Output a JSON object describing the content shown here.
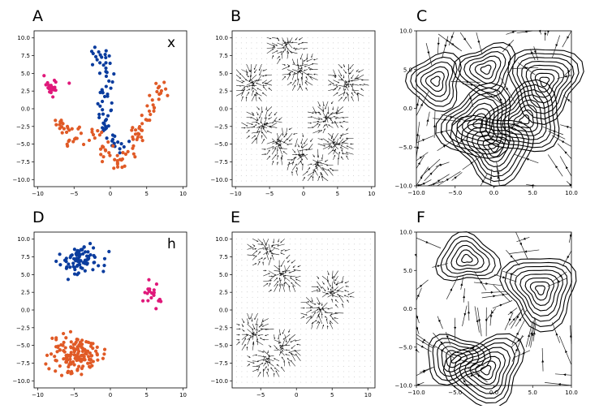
{
  "chart_data": [
    {
      "panel": "A",
      "type": "scatter",
      "annotation": "x",
      "xticks": [
        "−10",
        "−5",
        "0",
        "5",
        "10"
      ],
      "yticks": [
        "10.0",
        "7.5",
        "5.0",
        "2.5",
        "0.0",
        "−2.5",
        "−5.0",
        "−7.5",
        "−10.0"
      ],
      "xlim": [
        -10.5,
        10.5
      ],
      "ylim": [
        -11,
        11
      ],
      "series": [
        {
          "name": "pink cluster",
          "color": "#e0187a",
          "center": [
            -8,
            3.3
          ],
          "spread": [
            1.2,
            1.6
          ],
          "count": 22
        },
        {
          "name": "blue cluster",
          "color": "#0a3c9e",
          "path": [
            [
              -2,
              8.5
            ],
            [
              -1,
              6
            ],
            [
              -0.5,
              3.5
            ],
            [
              -0.8,
              1
            ],
            [
              -1,
              -2
            ],
            [
              0,
              -4.5
            ],
            [
              2,
              -5.2
            ]
          ],
          "count": 70
        },
        {
          "name": "orange cluster",
          "color": "#e05a26",
          "path": [
            [
              -7,
              -2
            ],
            [
              -5,
              -4.5
            ],
            [
              -3,
              -3
            ],
            [
              -1,
              -5.5
            ],
            [
              1,
              -8
            ],
            [
              3,
              -6
            ],
            [
              4,
              -2.5
            ],
            [
              6,
              0
            ],
            [
              7,
              4.5
            ]
          ],
          "count": 110
        }
      ]
    },
    {
      "panel": "B",
      "type": "quiver",
      "xticks": [
        "−10",
        "−5",
        "0",
        "5",
        "10"
      ],
      "yticks": [
        "10.0",
        "7.5",
        "5.0",
        "2.5",
        "0.0",
        "−2.5",
        "−5.0",
        "−7.5",
        "−10.0"
      ],
      "xlim": [
        -10.5,
        10.5
      ],
      "ylim": [
        -11,
        11
      ],
      "sinks": [
        [
          -7.5,
          3.5
        ],
        [
          -2.5,
          9
        ],
        [
          -0.5,
          5.5
        ],
        [
          6.5,
          3.5
        ],
        [
          -6,
          -2.5
        ],
        [
          -3.5,
          -5
        ],
        [
          3.5,
          -1.5
        ],
        [
          -0.5,
          -6.5
        ],
        [
          4.5,
          -5
        ],
        [
          2,
          -8
        ]
      ]
    },
    {
      "panel": "C",
      "type": "streamplot+contour",
      "xticks": [
        "−10.0",
        "−5.0",
        "0.0",
        "5.0",
        "10.0"
      ],
      "yticks": [
        "10.0",
        "5.0",
        "0.0",
        "−5.0",
        "−10.0"
      ],
      "xlim": [
        -10,
        10
      ],
      "ylim": [
        -10,
        10
      ],
      "sources": [
        [
          -7.5,
          3.5
        ],
        [
          6.5,
          3.5
        ],
        [
          -2,
          -2
        ],
        [
          4,
          -1.5
        ],
        [
          0,
          -5
        ],
        [
          -1,
          5
        ]
      ]
    },
    {
      "panel": "D",
      "type": "scatter",
      "annotation": "h",
      "xticks": [
        "−10",
        "−5",
        "0",
        "5",
        "10"
      ],
      "yticks": [
        "10.0",
        "7.5",
        "5.0",
        "2.5",
        "0.0",
        "−2.5",
        "−5.0",
        "−7.5",
        "−10.0"
      ],
      "xlim": [
        -10.5,
        10.5
      ],
      "ylim": [
        -11,
        11
      ],
      "series": [
        {
          "name": "blue cluster",
          "color": "#0a3c9e",
          "center": [
            -4,
            7.2
          ],
          "spread": [
            2.8,
            2.2
          ],
          "count": 80
        },
        {
          "name": "pink cluster",
          "color": "#e0187a",
          "center": [
            6,
            2
          ],
          "spread": [
            1.5,
            1.6
          ],
          "count": 22
        },
        {
          "name": "orange cluster",
          "color": "#e05a26",
          "center": [
            -5,
            -6.2
          ],
          "spread": [
            3.2,
            2.6
          ],
          "count": 140
        }
      ]
    },
    {
      "panel": "E",
      "type": "quiver",
      "xticks": [
        "−5",
        "0",
        "5",
        "10"
      ],
      "yticks": [
        "10.0",
        "7.5",
        "5.0",
        "2.5",
        "0.0",
        "−2.5",
        "−5.0",
        "−7.5",
        "−10.0"
      ],
      "xlim": [
        -9,
        11
      ],
      "ylim": [
        -11,
        11
      ],
      "sinks": [
        [
          -4,
          8.5
        ],
        [
          -2,
          5
        ],
        [
          5,
          2.5
        ],
        [
          3.5,
          0
        ],
        [
          -6,
          -3.5
        ],
        [
          -2,
          -5.5
        ],
        [
          -4,
          -7
        ]
      ]
    },
    {
      "panel": "F",
      "type": "streamplot+contour",
      "xticks": [
        "−10.0",
        "−5.0",
        "0.0",
        "5.0",
        "10.0"
      ],
      "yticks": [
        "10.0",
        "5.0",
        "0.0",
        "−5.0",
        "−10.0"
      ],
      "xlim": [
        -10,
        10
      ],
      "ylim": [
        -10,
        10
      ],
      "sources": [
        [
          -3.5,
          6.5
        ],
        [
          6,
          2.5
        ],
        [
          -5,
          -6.5
        ],
        [
          -1,
          -8
        ]
      ]
    }
  ]
}
